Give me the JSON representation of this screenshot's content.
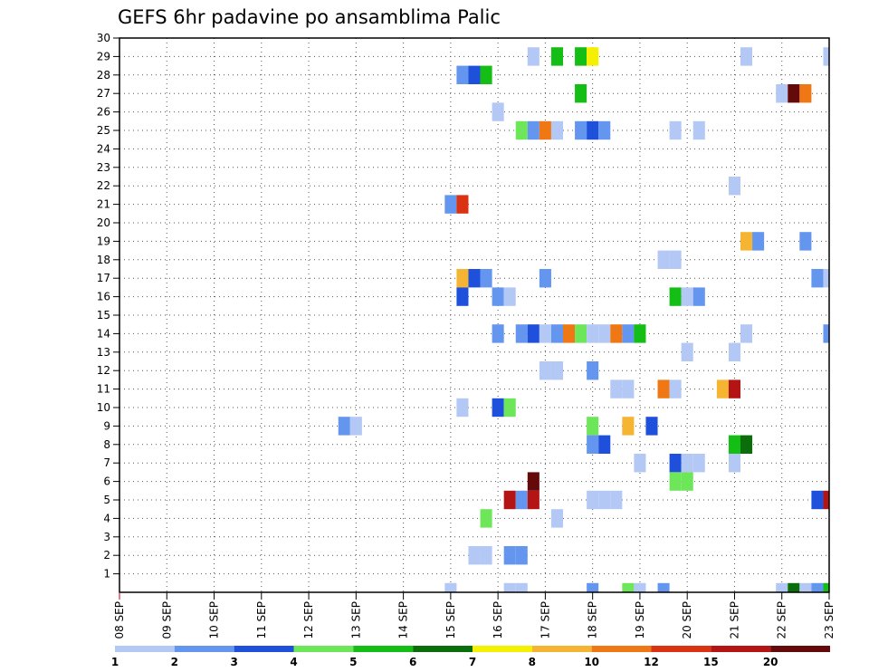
{
  "chart_data": {
    "type": "heatmap",
    "title": "GEFS 6hr padavine po ansamblima Palic",
    "xlabel": "",
    "ylabel": "",
    "x_tick_labels": [
      "08 SEP",
      "09 SEP",
      "10 SEP",
      "11 SEP",
      "12 SEP",
      "13 SEP",
      "14 SEP",
      "15 SEP",
      "16 SEP",
      "17 SEP",
      "18 SEP",
      "19 SEP",
      "20 SEP",
      "21 SEP",
      "22 SEP",
      "23 SEP"
    ],
    "x_range_days": [
      0,
      15
    ],
    "y_tick_labels": [
      "1",
      "2",
      "3",
      "4",
      "5",
      "6",
      "7",
      "8",
      "9",
      "10",
      "11",
      "12",
      "13",
      "14",
      "15",
      "16",
      "17",
      "18",
      "19",
      "20",
      "21",
      "22",
      "23",
      "24",
      "25",
      "26",
      "27",
      "28",
      "29",
      "30"
    ],
    "y_range": [
      0,
      30
    ],
    "grid": true,
    "colorbar": {
      "labels": [
        "1",
        "2",
        "3",
        "4",
        "5",
        "6",
        "7",
        "8",
        "10",
        "12",
        "15",
        "20"
      ],
      "colors": [
        "#b4c8f5",
        "#6496f0",
        "#1e50dc",
        "#6ee65a",
        "#14be14",
        "#0a6e0a",
        "#f5f000",
        "#f5b432",
        "#f07814",
        "#dc3214",
        "#b41414",
        "#640a0a"
      ]
    },
    "series": [
      {
        "member": 29,
        "cells": [
          [
            8.75,
            1
          ],
          [
            9.25,
            5
          ],
          [
            9.75,
            5
          ],
          [
            10.0,
            7
          ],
          [
            13.25,
            1
          ],
          [
            15.0,
            1
          ]
        ]
      },
      {
        "member": 28,
        "cells": [
          [
            7.25,
            2
          ],
          [
            7.5,
            3
          ],
          [
            7.75,
            5
          ]
        ]
      },
      {
        "member": 27,
        "cells": [
          [
            9.75,
            5
          ],
          [
            14.0,
            1
          ],
          [
            14.25,
            12
          ],
          [
            14.5,
            9
          ]
        ]
      },
      {
        "member": 26,
        "cells": [
          [
            8.0,
            1
          ]
        ]
      },
      {
        "member": 25,
        "cells": [
          [
            8.5,
            4
          ],
          [
            8.75,
            2
          ],
          [
            9.0,
            9
          ],
          [
            9.25,
            1
          ],
          [
            9.75,
            2
          ],
          [
            10.0,
            3
          ],
          [
            10.25,
            2
          ],
          [
            11.75,
            1
          ],
          [
            12.25,
            1
          ]
        ]
      },
      {
        "member": 22,
        "cells": [
          [
            13.0,
            1
          ]
        ]
      },
      {
        "member": 21,
        "cells": [
          [
            7.0,
            2
          ],
          [
            7.25,
            10
          ]
        ]
      },
      {
        "member": 19,
        "cells": [
          [
            13.25,
            8
          ],
          [
            13.5,
            2
          ],
          [
            14.5,
            2
          ]
        ]
      },
      {
        "member": 18,
        "cells": [
          [
            11.5,
            1
          ],
          [
            11.75,
            1
          ]
        ]
      },
      {
        "member": 17,
        "cells": [
          [
            7.25,
            8
          ],
          [
            7.5,
            3
          ],
          [
            7.75,
            2
          ],
          [
            9.0,
            2
          ],
          [
            14.75,
            2
          ],
          [
            15.0,
            1
          ]
        ]
      },
      {
        "member": 16,
        "cells": [
          [
            7.25,
            3
          ],
          [
            8.0,
            2
          ],
          [
            8.25,
            1
          ],
          [
            11.75,
            5
          ],
          [
            12.0,
            1
          ],
          [
            12.25,
            2
          ]
        ]
      },
      {
        "member": 14,
        "cells": [
          [
            8.0,
            2
          ],
          [
            8.5,
            2
          ],
          [
            8.75,
            3
          ],
          [
            9.0,
            1
          ],
          [
            9.25,
            2
          ],
          [
            9.5,
            9
          ],
          [
            9.75,
            4
          ],
          [
            10.0,
            1
          ],
          [
            10.25,
            1
          ],
          [
            10.5,
            9
          ],
          [
            10.75,
            2
          ],
          [
            11.0,
            5
          ],
          [
            13.25,
            1
          ],
          [
            15.0,
            2
          ]
        ]
      },
      {
        "member": 13,
        "cells": [
          [
            12.0,
            1
          ],
          [
            13.0,
            1
          ]
        ]
      },
      {
        "member": 12,
        "cells": [
          [
            9.0,
            1
          ],
          [
            9.25,
            1
          ],
          [
            10.0,
            2
          ]
        ]
      },
      {
        "member": 11,
        "cells": [
          [
            10.5,
            1
          ],
          [
            10.75,
            1
          ],
          [
            11.5,
            9
          ],
          [
            11.75,
            1
          ],
          [
            12.75,
            8
          ],
          [
            13.0,
            11
          ]
        ]
      },
      {
        "member": 10,
        "cells": [
          [
            7.25,
            1
          ],
          [
            8.0,
            3
          ],
          [
            8.25,
            4
          ]
        ]
      },
      {
        "member": 9,
        "cells": [
          [
            4.75,
            2
          ],
          [
            5.0,
            1
          ],
          [
            10.0,
            4
          ],
          [
            10.75,
            8
          ],
          [
            11.25,
            3
          ]
        ]
      },
      {
        "member": 8,
        "cells": [
          [
            10.0,
            2
          ],
          [
            10.25,
            3
          ],
          [
            13.0,
            5
          ],
          [
            13.25,
            6
          ]
        ]
      },
      {
        "member": 7,
        "cells": [
          [
            11.0,
            1
          ],
          [
            11.75,
            3
          ],
          [
            12.0,
            1
          ],
          [
            12.25,
            1
          ],
          [
            13.0,
            1
          ]
        ]
      },
      {
        "member": 6,
        "cells": [
          [
            8.75,
            12
          ],
          [
            11.75,
            4
          ],
          [
            12.0,
            4
          ]
        ]
      },
      {
        "member": 5,
        "cells": [
          [
            8.25,
            11
          ],
          [
            8.5,
            2
          ],
          [
            8.75,
            11
          ],
          [
            10.0,
            1
          ],
          [
            10.25,
            1
          ],
          [
            10.5,
            1
          ],
          [
            14.75,
            3
          ],
          [
            15.0,
            11
          ]
        ]
      },
      {
        "member": 4,
        "cells": [
          [
            7.75,
            4
          ],
          [
            9.25,
            1
          ]
        ]
      },
      {
        "member": 2,
        "cells": [
          [
            7.5,
            1
          ],
          [
            7.75,
            1
          ],
          [
            8.25,
            2
          ],
          [
            8.5,
            2
          ]
        ]
      },
      {
        "member": 0,
        "cells": [
          [
            7.0,
            1
          ],
          [
            8.25,
            1
          ],
          [
            8.5,
            1
          ],
          [
            10.0,
            2
          ],
          [
            10.75,
            4
          ],
          [
            11.0,
            1
          ],
          [
            11.5,
            2
          ],
          [
            14.0,
            1
          ],
          [
            14.25,
            6
          ],
          [
            14.5,
            1
          ],
          [
            14.75,
            2
          ],
          [
            15.0,
            5
          ]
        ]
      }
    ]
  }
}
